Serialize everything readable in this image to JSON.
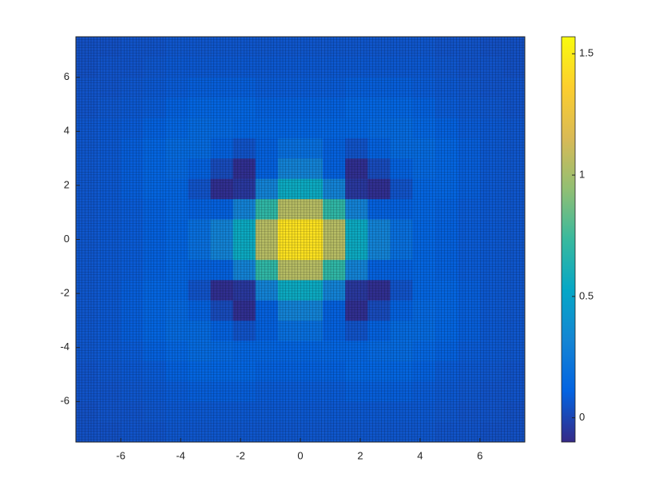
{
  "chart_data": {
    "type": "heatmap",
    "x": [
      -7.125,
      -6.375,
      -5.625,
      -4.875,
      -4.125,
      -3.375,
      -2.625,
      -1.875,
      -1.125,
      -0.375,
      0.375,
      1.125,
      1.875,
      2.625,
      3.375,
      4.125,
      4.875,
      5.625,
      6.375,
      7.125
    ],
    "y": [
      -7.125,
      -6.375,
      -5.625,
      -4.875,
      -4.125,
      -3.375,
      -2.625,
      -1.875,
      -1.125,
      -0.375,
      0.375,
      1.125,
      1.875,
      2.625,
      3.375,
      4.125,
      4.875,
      5.625,
      6.375,
      7.125
    ],
    "z": [
      [
        0.04,
        0.04,
        0.05,
        0.05,
        0.06,
        0.06,
        0.06,
        0.06,
        0.06,
        0.06,
        0.06,
        0.06,
        0.06,
        0.06,
        0.06,
        0.06,
        0.05,
        0.05,
        0.04,
        0.04
      ],
      [
        0.04,
        0.05,
        0.05,
        0.06,
        0.07,
        0.07,
        0.07,
        0.07,
        0.07,
        0.07,
        0.07,
        0.07,
        0.07,
        0.07,
        0.07,
        0.07,
        0.06,
        0.05,
        0.05,
        0.04
      ],
      [
        0.05,
        0.05,
        0.06,
        0.07,
        0.08,
        0.09,
        0.09,
        0.09,
        0.08,
        0.08,
        0.08,
        0.08,
        0.09,
        0.09,
        0.09,
        0.08,
        0.07,
        0.06,
        0.05,
        0.05
      ],
      [
        0.05,
        0.06,
        0.07,
        0.08,
        0.1,
        0.12,
        0.12,
        0.12,
        0.1,
        0.1,
        0.1,
        0.1,
        0.12,
        0.12,
        0.12,
        0.1,
        0.08,
        0.07,
        0.06,
        0.05
      ],
      [
        0.06,
        0.07,
        0.08,
        0.1,
        0.13,
        0.15,
        0.14,
        0.12,
        0.12,
        0.12,
        0.12,
        0.12,
        0.12,
        0.14,
        0.15,
        0.13,
        0.1,
        0.08,
        0.07,
        0.06
      ],
      [
        0.06,
        0.07,
        0.09,
        0.12,
        0.15,
        0.15,
        0.1,
        0.05,
        0.1,
        0.18,
        0.18,
        0.1,
        0.05,
        0.1,
        0.15,
        0.15,
        0.12,
        0.09,
        0.07,
        0.06
      ],
      [
        0.06,
        0.07,
        0.09,
        0.12,
        0.14,
        0.1,
        0.02,
        -0.08,
        0.1,
        0.3,
        0.3,
        0.1,
        -0.08,
        0.02,
        0.1,
        0.14,
        0.12,
        0.09,
        0.07,
        0.06
      ],
      [
        0.06,
        0.07,
        0.09,
        0.12,
        0.12,
        0.05,
        -0.08,
        -0.05,
        0.3,
        0.55,
        0.55,
        0.3,
        -0.05,
        -0.08,
        0.05,
        0.12,
        0.12,
        0.09,
        0.07,
        0.06
      ],
      [
        0.06,
        0.07,
        0.08,
        0.1,
        0.12,
        0.1,
        0.1,
        0.3,
        0.7,
        1.05,
        1.05,
        0.7,
        0.3,
        0.1,
        0.1,
        0.12,
        0.1,
        0.08,
        0.07,
        0.06
      ],
      [
        0.06,
        0.07,
        0.08,
        0.1,
        0.12,
        0.18,
        0.3,
        0.55,
        1.05,
        1.45,
        1.45,
        1.05,
        0.55,
        0.3,
        0.18,
        0.12,
        0.1,
        0.08,
        0.07,
        0.06
      ],
      [
        0.06,
        0.07,
        0.08,
        0.1,
        0.12,
        0.18,
        0.3,
        0.55,
        1.05,
        1.45,
        1.45,
        1.05,
        0.55,
        0.3,
        0.18,
        0.12,
        0.1,
        0.08,
        0.07,
        0.06
      ],
      [
        0.06,
        0.07,
        0.08,
        0.1,
        0.12,
        0.1,
        0.1,
        0.3,
        0.7,
        1.05,
        1.05,
        0.7,
        0.3,
        0.1,
        0.1,
        0.12,
        0.1,
        0.08,
        0.07,
        0.06
      ],
      [
        0.06,
        0.07,
        0.09,
        0.12,
        0.12,
        0.05,
        -0.08,
        -0.05,
        0.3,
        0.55,
        0.55,
        0.3,
        -0.05,
        -0.08,
        0.05,
        0.12,
        0.12,
        0.09,
        0.07,
        0.06
      ],
      [
        0.06,
        0.07,
        0.09,
        0.12,
        0.14,
        0.1,
        0.02,
        -0.08,
        0.1,
        0.3,
        0.3,
        0.1,
        -0.08,
        0.02,
        0.1,
        0.14,
        0.12,
        0.09,
        0.07,
        0.06
      ],
      [
        0.06,
        0.07,
        0.09,
        0.12,
        0.15,
        0.15,
        0.1,
        0.05,
        0.1,
        0.18,
        0.18,
        0.1,
        0.05,
        0.1,
        0.15,
        0.15,
        0.12,
        0.09,
        0.07,
        0.06
      ],
      [
        0.06,
        0.07,
        0.08,
        0.1,
        0.13,
        0.15,
        0.14,
        0.12,
        0.12,
        0.12,
        0.12,
        0.12,
        0.12,
        0.14,
        0.15,
        0.13,
        0.1,
        0.08,
        0.07,
        0.06
      ],
      [
        0.05,
        0.06,
        0.07,
        0.08,
        0.1,
        0.12,
        0.12,
        0.12,
        0.1,
        0.1,
        0.1,
        0.1,
        0.12,
        0.12,
        0.12,
        0.1,
        0.08,
        0.07,
        0.06,
        0.05
      ],
      [
        0.05,
        0.05,
        0.06,
        0.07,
        0.08,
        0.09,
        0.09,
        0.09,
        0.08,
        0.08,
        0.08,
        0.08,
        0.09,
        0.09,
        0.09,
        0.08,
        0.07,
        0.06,
        0.05,
        0.05
      ],
      [
        0.04,
        0.05,
        0.05,
        0.06,
        0.07,
        0.07,
        0.07,
        0.07,
        0.07,
        0.07,
        0.07,
        0.07,
        0.07,
        0.07,
        0.07,
        0.07,
        0.06,
        0.05,
        0.05,
        0.04
      ],
      [
        0.04,
        0.04,
        0.05,
        0.05,
        0.06,
        0.06,
        0.06,
        0.06,
        0.06,
        0.06,
        0.06,
        0.06,
        0.06,
        0.06,
        0.06,
        0.06,
        0.05,
        0.05,
        0.04,
        0.04
      ]
    ],
    "xlim": [
      -7.5,
      7.5
    ],
    "ylim": [
      -7.5,
      7.5
    ],
    "xticks": [
      -6,
      -4,
      -2,
      0,
      2,
      4,
      6
    ],
    "yticks": [
      -6,
      -4,
      -2,
      0,
      2,
      4,
      6
    ],
    "clim": [
      -0.1,
      1.57
    ],
    "cticks": [
      0,
      0.5,
      1,
      1.5
    ],
    "colormap": "parula",
    "colorbar": true
  }
}
